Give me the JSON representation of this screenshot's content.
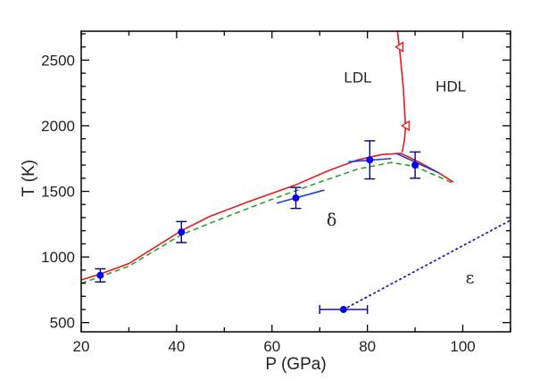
{
  "chart_data": {
    "type": "line",
    "title": "",
    "xlabel": "P (GPa)",
    "ylabel": "T (K)",
    "xlim": [
      20,
      110
    ],
    "ylim": [
      430,
      2720
    ],
    "xticks": [
      20,
      40,
      60,
      80,
      100
    ],
    "yticks": [
      500,
      1000,
      1500,
      2000,
      2500
    ],
    "grid": false,
    "legend": null,
    "annotations": [
      {
        "text": "LDL",
        "x": 78,
        "y": 2330
      },
      {
        "text": "HDL",
        "x": 97.5,
        "y": 2260
      },
      {
        "text": "δ",
        "x": 72.5,
        "y": 1240
      },
      {
        "text": "ε",
        "x": 101.5,
        "y": 800
      }
    ],
    "series": [
      {
        "name": "red-boundary-solid",
        "style": "solid",
        "color": "#e31a1c",
        "points": [
          [
            20,
            825
          ],
          [
            24,
            870
          ],
          [
            30,
            950
          ],
          [
            41,
            1200
          ],
          [
            47,
            1310
          ],
          [
            55,
            1420
          ],
          [
            65,
            1550
          ],
          [
            72,
            1660
          ],
          [
            78,
            1740
          ],
          [
            83,
            1780
          ],
          [
            87,
            1790
          ],
          [
            91,
            1720
          ],
          [
            95,
            1640
          ],
          [
            98,
            1570
          ]
        ]
      },
      {
        "name": "red-liquid-liquid-line",
        "style": "solid",
        "color": "#e31a1c",
        "points": [
          [
            87.3,
            1800
          ],
          [
            87.8,
            1900
          ],
          [
            88.0,
            2000
          ],
          [
            87.5,
            2300
          ],
          [
            86.7,
            2600
          ],
          [
            86.3,
            2720
          ]
        ]
      },
      {
        "name": "green-dashed",
        "style": "dashed",
        "color": "#2ca02c",
        "points": [
          [
            20,
            800
          ],
          [
            24,
            850
          ],
          [
            30,
            930
          ],
          [
            41,
            1170
          ],
          [
            50,
            1300
          ],
          [
            60,
            1440
          ],
          [
            70,
            1570
          ],
          [
            78,
            1670
          ],
          [
            85,
            1720
          ],
          [
            90,
            1690
          ],
          [
            95,
            1610
          ],
          [
            98,
            1560
          ]
        ]
      },
      {
        "name": "blue-dotted-delta-epsilon",
        "style": "dotted",
        "color": "#1f1fbf",
        "points": [
          [
            75,
            600
          ],
          [
            110,
            1280
          ]
        ]
      }
    ],
    "markers": [
      {
        "type": "open-triangle-left",
        "color": "#e31a1c",
        "x": 86.7,
        "y": 2600
      },
      {
        "type": "open-triangle-left",
        "color": "#e31a1c",
        "x": 88.0,
        "y": 2000
      }
    ],
    "data_points": [
      {
        "x": 24,
        "y": 860,
        "yerr": 50
      },
      {
        "x": 41,
        "y": 1190,
        "yerr": 80
      },
      {
        "x": 65,
        "y": 1450,
        "yerr": 80,
        "slope_line": [
          [
            61,
            1410
          ],
          [
            71,
            1510
          ]
        ]
      },
      {
        "x": 80.5,
        "y": 1740,
        "yerr": 145,
        "slope_line": [
          [
            76,
            1725
          ],
          [
            85,
            1750
          ]
        ]
      },
      {
        "x": 90,
        "y": 1700,
        "yerr": 100,
        "slope_line": [
          [
            86,
            1790
          ],
          [
            95,
            1640
          ]
        ]
      },
      {
        "x": 75,
        "y": 600,
        "xerr": 5
      }
    ],
    "point_color": "#0000ee",
    "errorbar_color": "#00008b"
  }
}
